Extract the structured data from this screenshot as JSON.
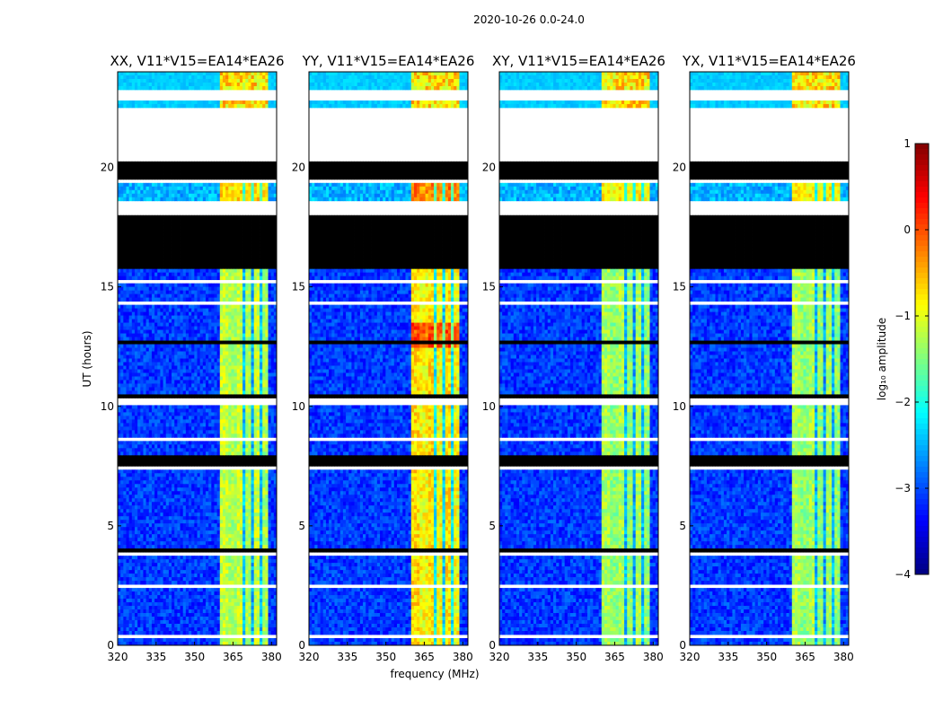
{
  "chart_data": {
    "type": "heatmap",
    "suptitle": "2020-10-26 0.0-24.0",
    "xlabel": "frequency (MHz)",
    "ylabel": "UT (hours)",
    "xlim": [
      320,
      382
    ],
    "ylim": [
      0,
      24
    ],
    "xticks": [
      320,
      335,
      350,
      365,
      380
    ],
    "yticks": [
      0,
      5,
      10,
      15,
      20
    ],
    "panels": [
      {
        "title": "XX, V11*V15=EA14*EA26",
        "strength": 1.0
      },
      {
        "title": "YY, V11*V15=EA14*EA26",
        "strength": 1.15
      },
      {
        "title": "XY, V11*V15=EA14*EA26",
        "strength": 0.95
      },
      {
        "title": "YX, V11*V15=EA14*EA26",
        "strength": 0.95
      }
    ],
    "signal_band_mhz": [
      360,
      379
    ],
    "gap_rows_hours": [
      [
        20.2,
        22.5
      ],
      [
        18.0,
        18.6
      ],
      [
        3.75,
        3.95
      ],
      [
        10.05,
        10.3
      ]
    ],
    "flagged_rows_hours": [
      [
        15.8,
        18.0
      ]
    ],
    "colorbar": {
      "label": "log₁₀ amplitude",
      "min": -4,
      "max": 1,
      "ticks": [
        -4,
        -3,
        -2,
        -1,
        0,
        1
      ],
      "tick_labels": [
        "−4",
        "−3",
        "−2",
        "−1",
        "0",
        "1"
      ],
      "colormap": "jet"
    }
  }
}
